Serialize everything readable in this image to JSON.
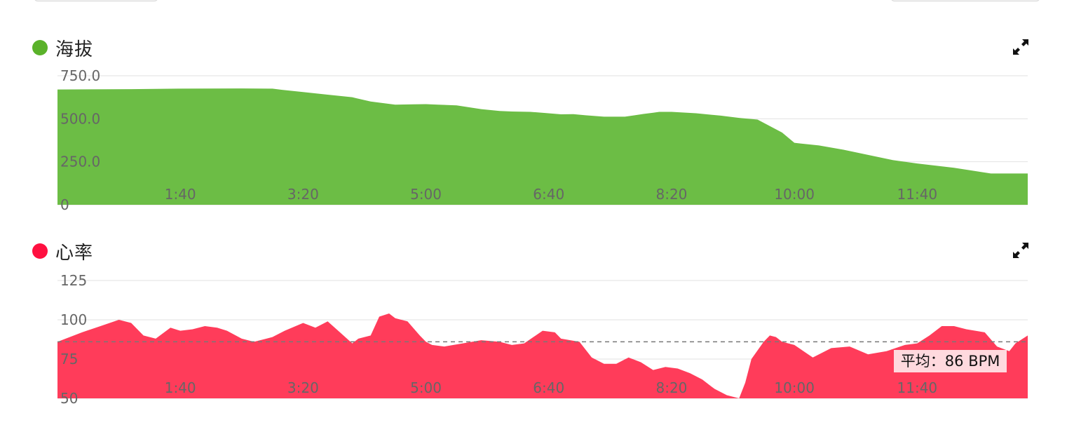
{
  "charts": {
    "altitude": {
      "title": "海拔",
      "color": "#6cbd45",
      "dot_color": "#5ab22a"
    },
    "heart_rate": {
      "title": "心率",
      "color": "#ff3c5a",
      "dot_color": "#ff1040",
      "average_label": "平均：86 BPM"
    }
  },
  "icons": {
    "expand": "expand-arrows-icon"
  },
  "chart_data": [
    {
      "type": "area",
      "name": "altitude",
      "xlim": [
        0,
        790
      ],
      "ylim": [
        0,
        750
      ],
      "y_ticks": [
        0,
        250,
        500,
        750
      ],
      "y_tick_labels": [
        "0",
        "250.0",
        "500.0",
        "750.0"
      ],
      "x_ticks": [
        100,
        200,
        300,
        400,
        500,
        600,
        700
      ],
      "x_tick_labels": [
        "1:40",
        "3:20",
        "5:00",
        "6:40",
        "8:20",
        "10:00",
        "11:40"
      ],
      "grid": true,
      "x": [
        0,
        60,
        100,
        150,
        175,
        183,
        200,
        220,
        240,
        255,
        275,
        290,
        300,
        310,
        325,
        345,
        360,
        370,
        385,
        398,
        410,
        420,
        430,
        445,
        462,
        470,
        477,
        485,
        490,
        500,
        520,
        540,
        555,
        570,
        590,
        600,
        620,
        640,
        660,
        680,
        700,
        730,
        760,
        790
      ],
      "y": [
        670,
        672,
        675,
        676,
        675,
        668,
        655,
        640,
        625,
        600,
        582,
        584,
        585,
        582,
        578,
        556,
        545,
        542,
        540,
        533,
        526,
        527,
        520,
        512,
        512,
        520,
        528,
        535,
        540,
        540,
        532,
        518,
        505,
        495,
        420,
        360,
        345,
        320,
        290,
        260,
        240,
        215,
        182,
        182
      ],
      "avg_line": null
    },
    {
      "type": "area",
      "name": "heart_rate",
      "xlim": [
        0,
        790
      ],
      "ylim": [
        50,
        125
      ],
      "y_ticks": [
        50,
        75,
        100,
        125
      ],
      "y_tick_labels": [
        "50",
        "75",
        "100",
        "125"
      ],
      "x_ticks": [
        100,
        200,
        300,
        400,
        500,
        600,
        700
      ],
      "x_tick_labels": [
        "1:40",
        "3:20",
        "5:00",
        "6:40",
        "8:20",
        "10:00",
        "11:40"
      ],
      "grid": true,
      "avg_line": 86,
      "x": [
        0,
        20,
        35,
        50,
        60,
        70,
        80,
        92,
        100,
        110,
        120,
        130,
        138,
        150,
        160,
        175,
        185,
        200,
        210,
        220,
        230,
        240,
        245,
        255,
        262,
        270,
        275,
        285,
        295,
        300,
        305,
        315,
        330,
        345,
        360,
        370,
        380,
        395,
        405,
        410,
        425,
        435,
        445,
        455,
        465,
        475,
        485,
        495,
        505,
        515,
        525,
        535,
        545,
        555,
        560,
        565,
        575,
        580,
        585,
        590,
        600,
        615,
        630,
        645,
        660,
        675,
        690,
        700,
        710,
        720,
        730,
        740,
        755,
        765,
        775,
        780,
        790
      ],
      "y": [
        86,
        92,
        96,
        100,
        98,
        90,
        88,
        95,
        93,
        94,
        96,
        95,
        93,
        88,
        86,
        89,
        93,
        98,
        95,
        99,
        92,
        85,
        88,
        90,
        102,
        104,
        101,
        99,
        90,
        86,
        84,
        83,
        85,
        87,
        86,
        84,
        85,
        93,
        92,
        88,
        86,
        76,
        72,
        72,
        76,
        73,
        68,
        70,
        69,
        66,
        62,
        56,
        52,
        50,
        60,
        75,
        86,
        90,
        89,
        86,
        84,
        76,
        82,
        83,
        78,
        80,
        84,
        85,
        90,
        96,
        96,
        94,
        92,
        83,
        80,
        85,
        90
      ],
      "avg_label_x": 690
    }
  ]
}
